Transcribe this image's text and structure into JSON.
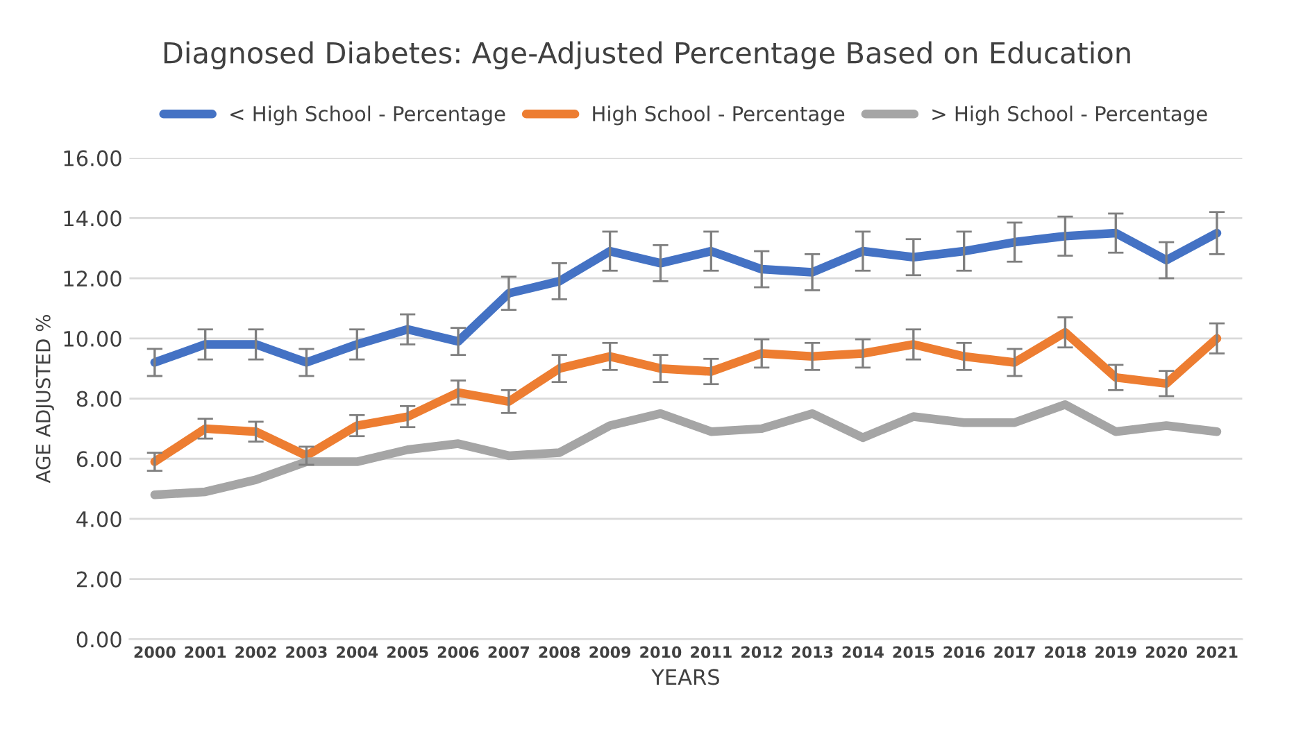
{
  "chart_data": {
    "type": "line",
    "title": "Diagnosed Diabetes: Age-Adjusted Percentage Based on Education",
    "xlabel": "YEARS",
    "ylabel": "AGE ADJUSTED %",
    "categories": [
      "2000",
      "2001",
      "2002",
      "2003",
      "2004",
      "2005",
      "2006",
      "2007",
      "2008",
      "2009",
      "2010",
      "2011",
      "2012",
      "2013",
      "2014",
      "2015",
      "2016",
      "2017",
      "2018",
      "2019",
      "2020",
      "2021"
    ],
    "series": [
      {
        "name": "< High School - Percentage",
        "color": "#4472c4",
        "values": [
          9.2,
          9.8,
          9.8,
          9.2,
          9.8,
          10.3,
          9.9,
          11.5,
          11.9,
          12.9,
          12.5,
          12.9,
          12.3,
          12.2,
          12.9,
          12.7,
          12.9,
          13.2,
          13.4,
          13.5,
          12.6,
          13.5
        ],
        "errors": [
          0.45,
          0.5,
          0.5,
          0.45,
          0.5,
          0.5,
          0.45,
          0.55,
          0.6,
          0.65,
          0.6,
          0.65,
          0.6,
          0.6,
          0.65,
          0.6,
          0.65,
          0.65,
          0.65,
          0.65,
          0.6,
          0.7
        ]
      },
      {
        "name": "High School - Percentage",
        "color": "#ed7d31",
        "values": [
          5.9,
          7.0,
          6.9,
          6.1,
          7.1,
          7.4,
          8.2,
          7.9,
          9.0,
          9.4,
          9.0,
          8.9,
          9.5,
          9.4,
          9.5,
          9.8,
          9.4,
          9.2,
          10.2,
          8.7,
          8.5,
          10.0
        ],
        "errors": [
          0.3,
          0.33,
          0.33,
          0.3,
          0.35,
          0.35,
          0.4,
          0.38,
          0.45,
          0.45,
          0.45,
          0.42,
          0.47,
          0.45,
          0.47,
          0.5,
          0.45,
          0.45,
          0.5,
          0.42,
          0.42,
          0.5
        ]
      },
      {
        "name": "> High School - Percentage",
        "color": "#a5a5a5",
        "values": [
          4.8,
          4.9,
          5.3,
          5.9,
          5.9,
          6.3,
          6.5,
          6.1,
          6.2,
          7.1,
          7.5,
          6.9,
          7.0,
          7.5,
          6.7,
          7.4,
          7.2,
          7.2,
          7.8,
          6.9,
          7.1,
          6.9
        ]
      }
    ],
    "ylim": [
      0,
      16
    ],
    "yticks": [
      {
        "value": 0,
        "label": "0.00"
      },
      {
        "value": 2,
        "label": "2.00"
      },
      {
        "value": 4,
        "label": "4.00"
      },
      {
        "value": 6,
        "label": "6.00"
      },
      {
        "value": 8,
        "label": "8.00"
      },
      {
        "value": 10,
        "label": "10.00"
      },
      {
        "value": 12,
        "label": "12.00"
      },
      {
        "value": 14,
        "label": "14.00"
      },
      {
        "value": 16,
        "label": "16.00"
      }
    ],
    "grid": "y",
    "legend": "top",
    "marker": "none",
    "line_style": "solid"
  }
}
